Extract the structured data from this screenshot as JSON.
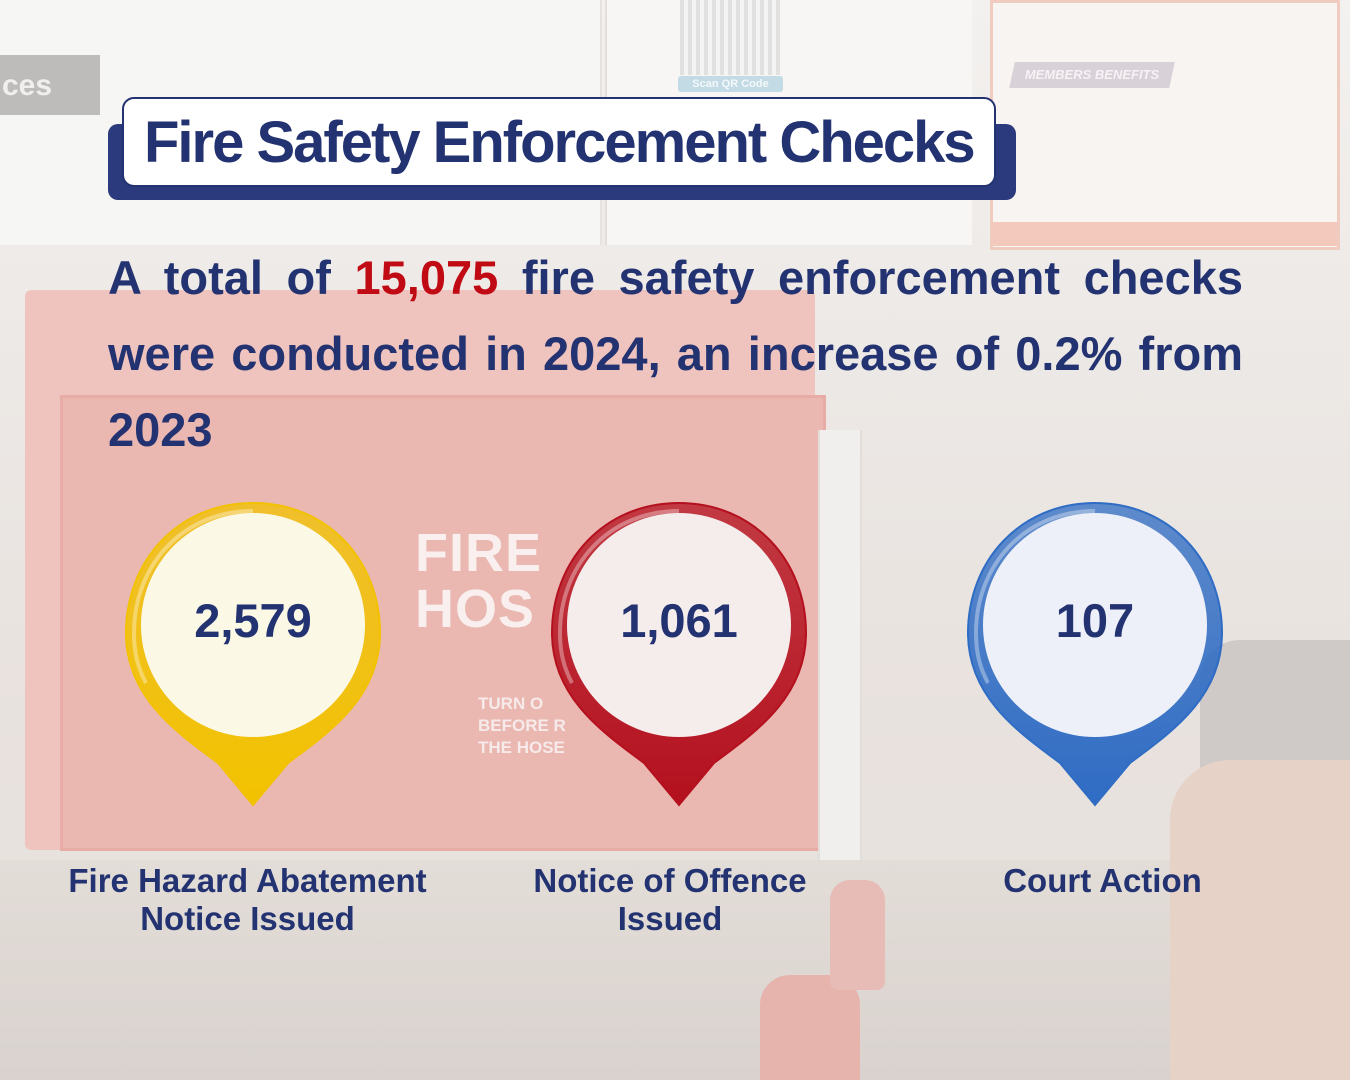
{
  "title": "Fire Safety Enforcement Checks",
  "summary": {
    "before": "A total of ",
    "highlight": "15,075",
    "after": " fire safety enforcement checks were conducted in 2024, an increase of 0.2% from 2023"
  },
  "stats": [
    {
      "value": "2,579",
      "label_line1": "Fire Hazard Abatement",
      "label_line2": "Notice Issued",
      "color": "#f2c200"
    },
    {
      "value": "1,061",
      "label_line1": "Notice of Offence",
      "label_line2": "Issued",
      "color": "#b4101e"
    },
    {
      "value": "107",
      "label_line1": "Court Action",
      "label_line2": "",
      "color": "#2f6cc4"
    }
  ],
  "background": {
    "left_poster_text": "ces",
    "qr_label": "Scan QR Code",
    "badge_text": "MEMBERS BENEFITS",
    "hose_line1": "FIRE",
    "hose_line2": "HOS",
    "hose_small1": "TURN O",
    "hose_small2": "BEFORE R",
    "hose_small3": "THE HOSE"
  },
  "colors": {
    "navy": "#233270",
    "accent_red": "#c00a14"
  }
}
